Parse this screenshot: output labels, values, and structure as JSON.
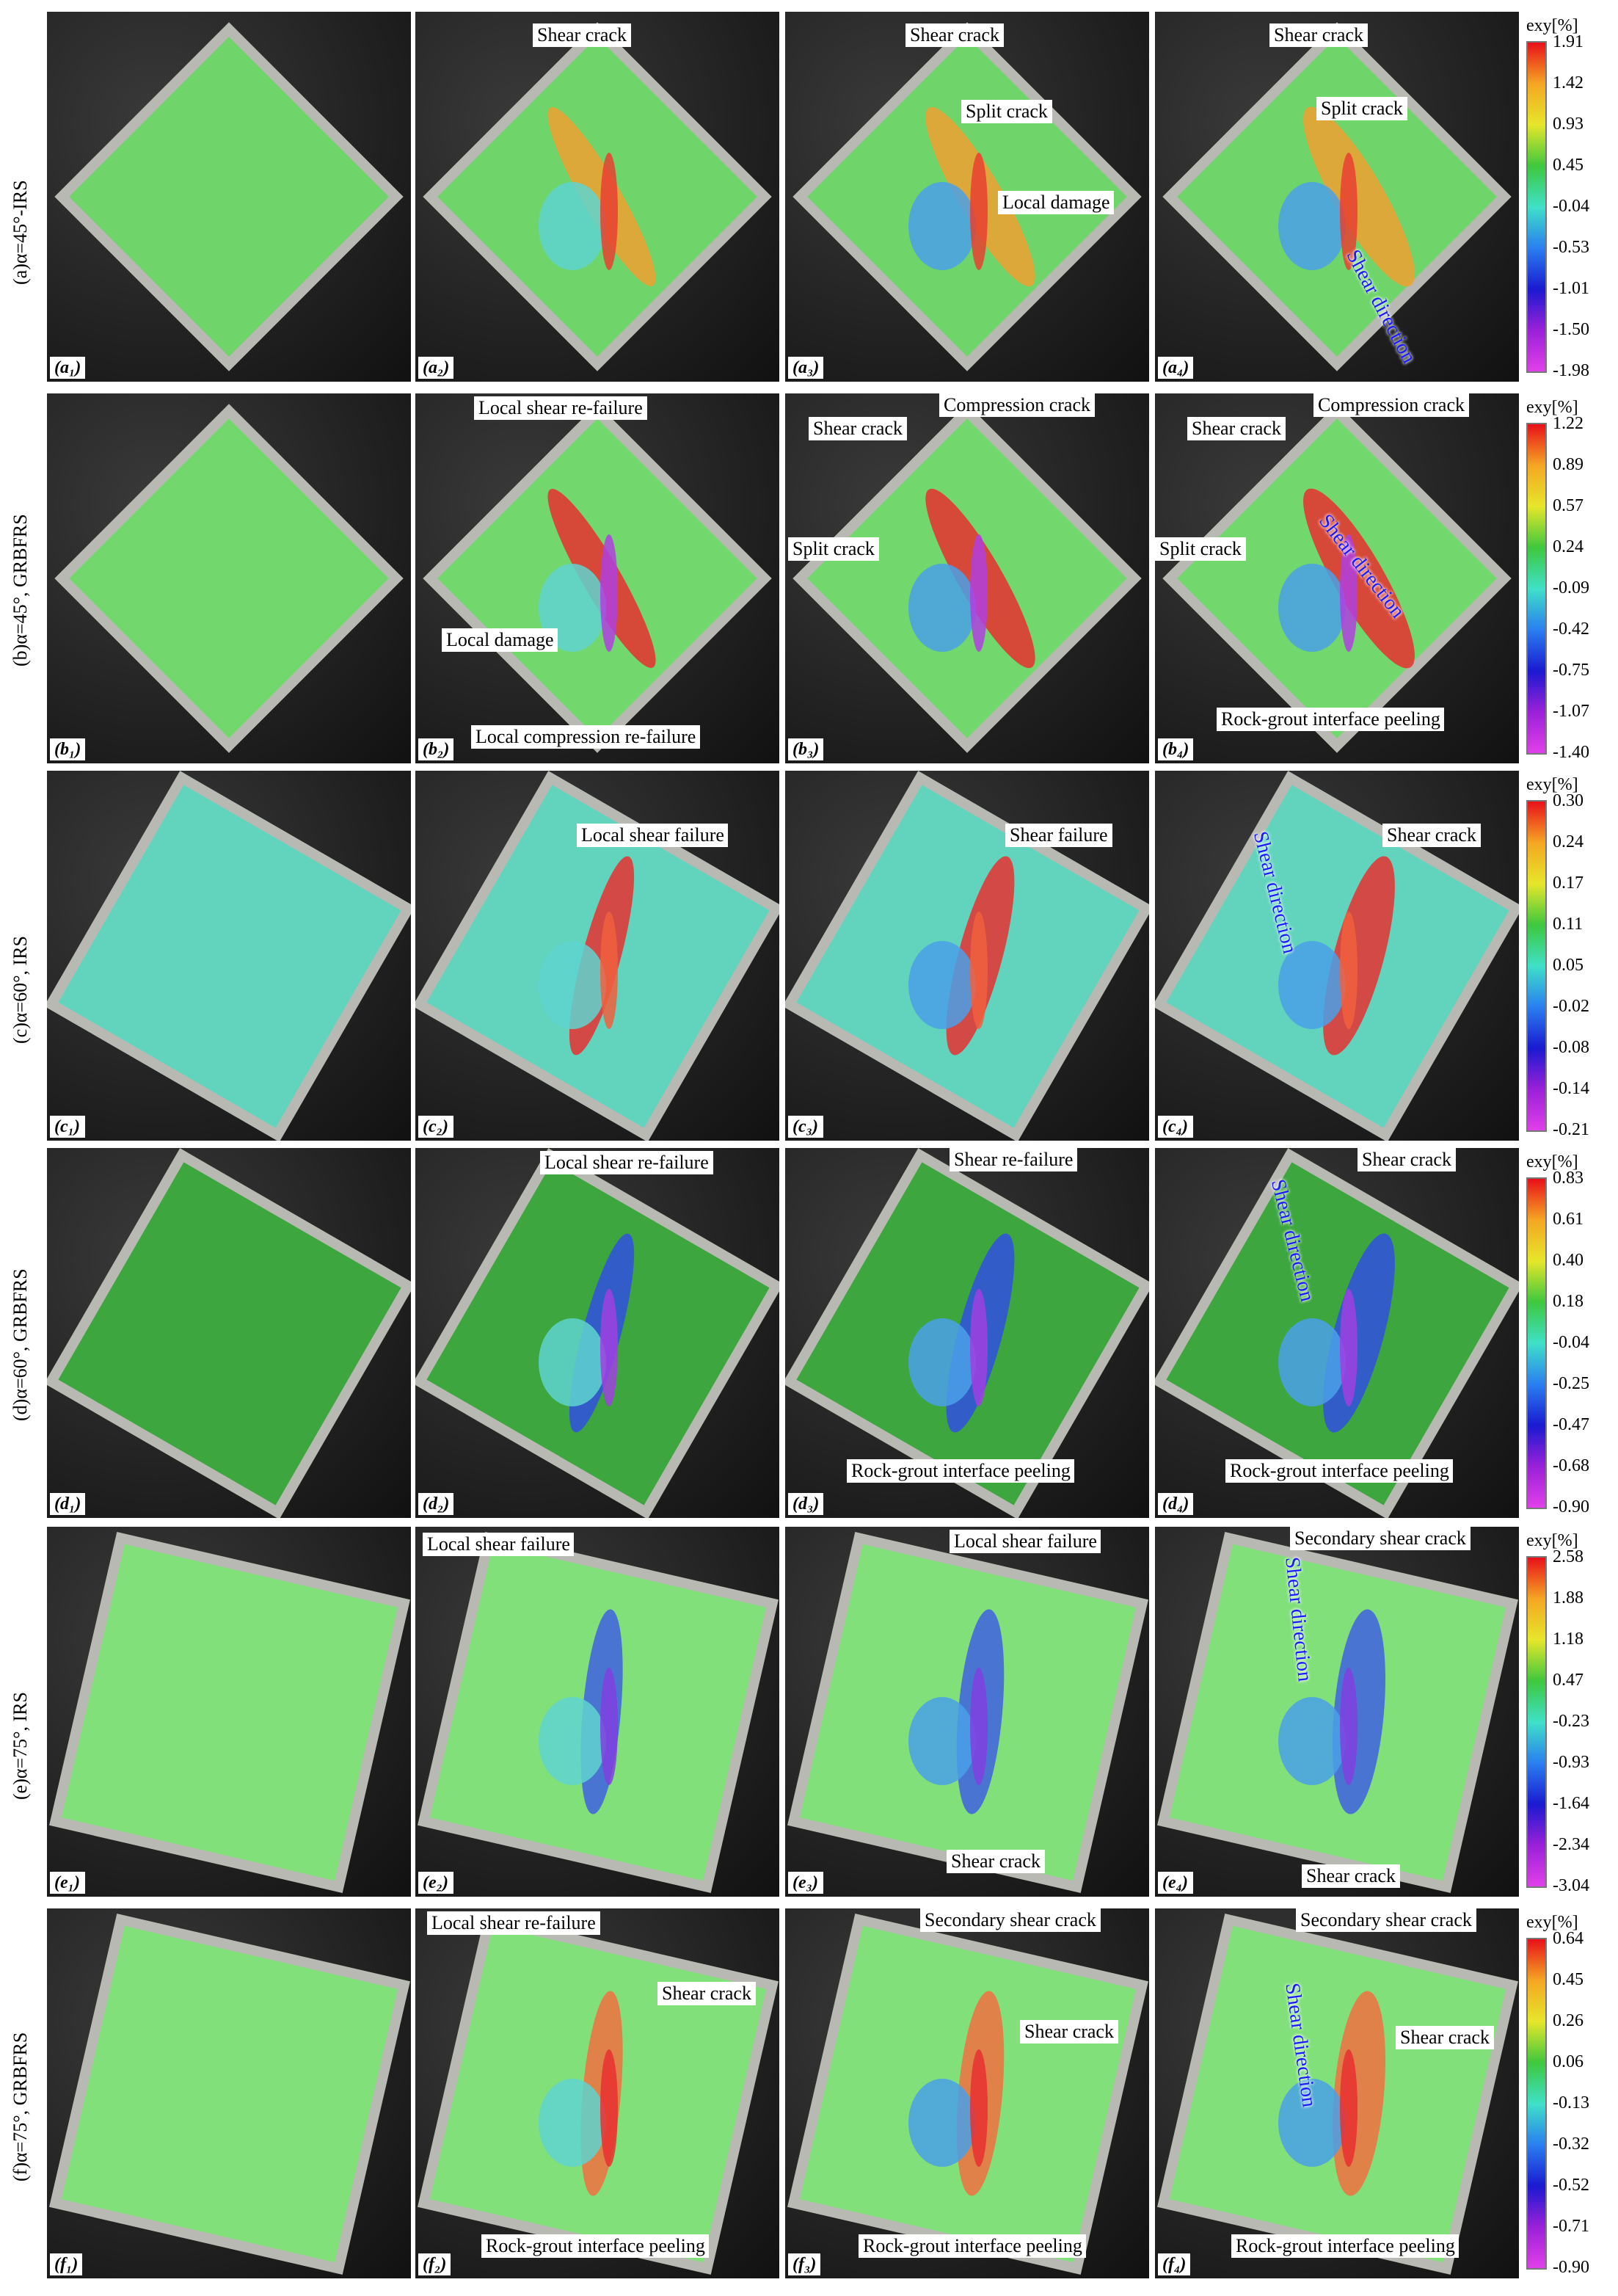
{
  "rows": [
    {
      "label": "(a)α=45°-IRS",
      "colorbar": {
        "title": "exy[%]",
        "ticks": [
          "1.91",
          "1.42",
          "0.93",
          "0.45",
          "-0.04",
          "-0.53",
          "-1.01",
          "-1.50",
          "-1.98"
        ]
      },
      "panels": [
        {
          "label": "(a₁)",
          "annotations": []
        },
        {
          "label": "(a₂)",
          "annotations": [
            "Shear crack"
          ]
        },
        {
          "label": "(a₃)",
          "annotations": [
            "Shear crack",
            "Split crack",
            "Local damage"
          ]
        },
        {
          "label": "(a₄)",
          "annotations": [
            "Shear crack",
            "Split crack",
            "Shear direction"
          ]
        }
      ]
    },
    {
      "label": "(b)α=45°, GRBFRS",
      "colorbar": {
        "title": "exy[%]",
        "ticks": [
          "1.22",
          "0.89",
          "0.57",
          "0.24",
          "-0.09",
          "-0.42",
          "-0.75",
          "-1.07",
          "-1.40"
        ]
      },
      "panels": [
        {
          "label": "(b₁)",
          "annotations": []
        },
        {
          "label": "(b₂)",
          "annotations": [
            "Local shear re-failure",
            "Local damage",
            "Local compression re-failure"
          ]
        },
        {
          "label": "(b₃)",
          "annotations": [
            "Shear crack",
            "Compression crack",
            "Split crack"
          ]
        },
        {
          "label": "(b₄)",
          "annotations": [
            "Shear crack",
            "Compression crack",
            "Split crack",
            "Shear direction",
            "Rock-grout interface peeling"
          ]
        }
      ]
    },
    {
      "label": "(c)α=60°, IRS",
      "colorbar": {
        "title": "exy[%]",
        "ticks": [
          "0.30",
          "0.24",
          "0.17",
          "0.11",
          "0.05",
          "-0.02",
          "-0.08",
          "-0.14",
          "-0.21"
        ]
      },
      "panels": [
        {
          "label": "(c₁)",
          "annotations": []
        },
        {
          "label": "(c₂)",
          "annotations": [
            "Local shear failure"
          ]
        },
        {
          "label": "(c₃)",
          "annotations": [
            "Shear failure"
          ]
        },
        {
          "label": "(c₄)",
          "annotations": [
            "Shear direction",
            "Shear crack"
          ]
        }
      ]
    },
    {
      "label": "(d)α=60°, GRBFRS",
      "colorbar": {
        "title": "exy[%]",
        "ticks": [
          "0.83",
          "0.61",
          "0.40",
          "0.18",
          "-0.04",
          "-0.25",
          "-0.47",
          "-0.68",
          "-0.90"
        ]
      },
      "panels": [
        {
          "label": "(d₁)",
          "annotations": []
        },
        {
          "label": "(d₂)",
          "annotations": [
            "Local shear re-failure"
          ]
        },
        {
          "label": "(d₃)",
          "annotations": [
            "Shear re-failure",
            "Rock-grout interface peeling"
          ]
        },
        {
          "label": "(d₄)",
          "annotations": [
            "Shear crack",
            "Shear direction",
            "Rock-grout interface peeling"
          ]
        }
      ]
    },
    {
      "label": "(e)α=75°, IRS",
      "colorbar": {
        "title": "exy[%]",
        "ticks": [
          "2.58",
          "1.88",
          "1.18",
          "0.47",
          "-0.23",
          "-0.93",
          "-1.64",
          "-2.34",
          "-3.04"
        ]
      },
      "panels": [
        {
          "label": "(e₁)",
          "annotations": []
        },
        {
          "label": "(e₂)",
          "annotations": [
            "Local shear failure"
          ]
        },
        {
          "label": "(e₃)",
          "annotations": [
            "Local shear failure",
            "Shear crack"
          ]
        },
        {
          "label": "(e₄)",
          "annotations": [
            "Secondary shear crack",
            "Shear direction",
            "Shear crack"
          ]
        }
      ]
    },
    {
      "label": "(f)α=75°, GRBFRS",
      "colorbar": {
        "title": "exy[%]",
        "ticks": [
          "0.64",
          "0.45",
          "0.26",
          "0.06",
          "-0.13",
          "-0.32",
          "-0.52",
          "-0.71",
          "-0.90"
        ]
      },
      "panels": [
        {
          "label": "(f₁)",
          "annotations": []
        },
        {
          "label": "(f₂)",
          "annotations": [
            "Local shear re-failure",
            "Shear crack",
            "Rock-grout interface peeling"
          ]
        },
        {
          "label": "(f₃)",
          "annotations": [
            "Secondary shear crack",
            "Shear crack",
            "Rock-grout interface peeling"
          ]
        },
        {
          "label": "(f₄)",
          "annotations": [
            "Secondary shear crack",
            "Shear crack",
            "Shear direction",
            "Rock-grout interface peeling"
          ]
        }
      ]
    }
  ]
}
